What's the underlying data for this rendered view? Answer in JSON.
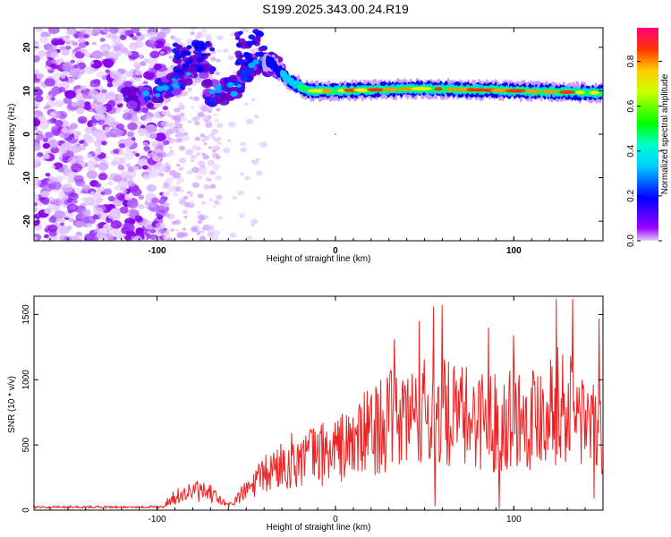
{
  "title": "S199.2025.343.00.24.R19",
  "chart_data": [
    {
      "type": "heatmap",
      "xlabel": "Height of straight line (km)",
      "ylabel": "Frequency (Hz)",
      "xlim": [
        -169,
        150
      ],
      "ylim": [
        -24.5,
        24.5
      ],
      "x_ticks": [
        -100,
        0,
        100
      ],
      "y_ticks": [
        20,
        10,
        0,
        -10,
        -20
      ],
      "colorbar": {
        "label": "Normalized spectral amplitude",
        "range": [
          0.0,
          0.95
        ],
        "ticks": [
          0.0,
          0.2,
          0.4,
          0.6,
          0.8
        ],
        "tick_labels": [
          "0.0",
          "0.2",
          "0.4",
          "0.6",
          "0.8"
        ],
        "colormap": [
          "#ff00ff",
          "#ff0000",
          "#ffff00",
          "#00ff00",
          "#00ffff",
          "#0000ff",
          "#e6ccff"
        ]
      },
      "ridge": [
        {
          "x": -115,
          "y": 8
        },
        {
          "x": -100,
          "y": 9.5
        },
        {
          "x": -85,
          "y": 13
        },
        {
          "x": -75,
          "y": 18
        },
        {
          "x": -70,
          "y": 9
        },
        {
          "x": -55,
          "y": 11
        },
        {
          "x": -45,
          "y": 17
        },
        {
          "x": -35,
          "y": 16
        },
        {
          "x": -25,
          "y": 12
        },
        {
          "x": -15,
          "y": 10
        },
        {
          "x": 0,
          "y": 10
        },
        {
          "x": 50,
          "y": 10.5
        },
        {
          "x": 100,
          "y": 10
        },
        {
          "x": 148,
          "y": 9.5
        }
      ]
    },
    {
      "type": "line",
      "xlabel": "Height of straight line (km)",
      "ylabel": "SNR (10 * v/v)",
      "xlim": [
        -169,
        150
      ],
      "ylim": [
        0,
        1640
      ],
      "x_ticks": [
        -100,
        0,
        100
      ],
      "y_ticks": [
        0,
        500,
        1000,
        1500
      ],
      "color": "#ee2222",
      "envelope": [
        {
          "x": -169,
          "y": 25
        },
        {
          "x": -100,
          "y": 30
        },
        {
          "x": -90,
          "y": 120
        },
        {
          "x": -80,
          "y": 180
        },
        {
          "x": -70,
          "y": 150
        },
        {
          "x": -60,
          "y": 40
        },
        {
          "x": -50,
          "y": 180
        },
        {
          "x": -40,
          "y": 320
        },
        {
          "x": -30,
          "y": 430
        },
        {
          "x": -20,
          "y": 480
        },
        {
          "x": -10,
          "y": 520
        },
        {
          "x": 0,
          "y": 560
        },
        {
          "x": 10,
          "y": 620
        },
        {
          "x": 20,
          "y": 750
        },
        {
          "x": 30,
          "y": 820
        },
        {
          "x": 40,
          "y": 870
        },
        {
          "x": 50,
          "y": 900
        },
        {
          "x": 60,
          "y": 900
        },
        {
          "x": 70,
          "y": 850
        },
        {
          "x": 80,
          "y": 870
        },
        {
          "x": 90,
          "y": 820
        },
        {
          "x": 100,
          "y": 900
        },
        {
          "x": 110,
          "y": 870
        },
        {
          "x": 120,
          "y": 1000
        },
        {
          "x": 130,
          "y": 950
        },
        {
          "x": 140,
          "y": 850
        },
        {
          "x": 150,
          "y": 700
        }
      ],
      "peaks": [
        {
          "x": 33,
          "y": 1310
        },
        {
          "x": 47,
          "y": 1450
        },
        {
          "x": 55,
          "y": 1560
        },
        {
          "x": 60,
          "y": 1575
        },
        {
          "x": 86,
          "y": 1400
        },
        {
          "x": 100,
          "y": 1340
        },
        {
          "x": 124,
          "y": 1620
        },
        {
          "x": 133,
          "y": 1620
        },
        {
          "x": 148,
          "y": 1470
        }
      ],
      "dips": [
        {
          "x": 56,
          "y": 30
        },
        {
          "x": 92,
          "y": 10
        },
        {
          "x": 145,
          "y": 90
        }
      ]
    }
  ]
}
